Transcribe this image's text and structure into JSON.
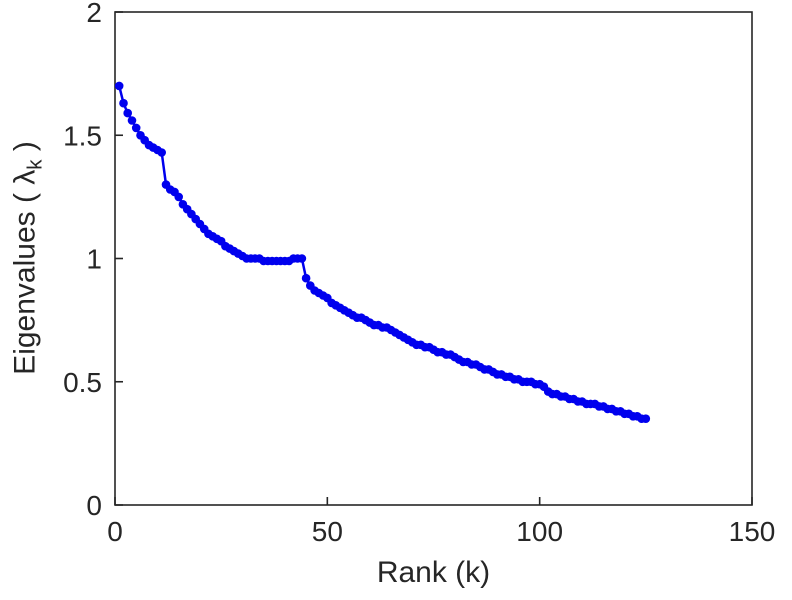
{
  "chart_data": {
    "type": "scatter",
    "title": "",
    "xlabel": "Rank (k)",
    "ylabel": "Eigenvalues ( λk )",
    "ylabel_parts": {
      "prefix": "Eigenvalues ( λ",
      "sub": "k",
      "suffix": " )"
    },
    "xlim": [
      0,
      150
    ],
    "ylim": [
      0,
      2
    ],
    "xticks": [
      0,
      50,
      100,
      150
    ],
    "xtick_labels": [
      "0",
      "50",
      "100",
      "150"
    ],
    "yticks": [
      0,
      0.5,
      1,
      1.5,
      2
    ],
    "ytick_labels": [
      "0",
      "0.5",
      "1",
      "1.5",
      "2"
    ],
    "grid": false,
    "legend": "none",
    "marker_color": "#0000EE",
    "axis_color": "#262626",
    "series": [
      {
        "name": "eigenvalues",
        "x": [
          1,
          2,
          3,
          4,
          5,
          6,
          7,
          8,
          9,
          10,
          11,
          12,
          13,
          14,
          15,
          16,
          17,
          18,
          19,
          20,
          21,
          22,
          23,
          24,
          25,
          26,
          27,
          28,
          29,
          30,
          31,
          32,
          33,
          34,
          35,
          36,
          37,
          38,
          39,
          40,
          41,
          42,
          43,
          44,
          45,
          46,
          47,
          48,
          49,
          50,
          51,
          52,
          53,
          54,
          55,
          56,
          57,
          58,
          59,
          60,
          61,
          62,
          63,
          64,
          65,
          66,
          67,
          68,
          69,
          70,
          71,
          72,
          73,
          74,
          75,
          76,
          77,
          78,
          79,
          80,
          81,
          82,
          83,
          84,
          85,
          86,
          87,
          88,
          89,
          90,
          91,
          92,
          93,
          94,
          95,
          96,
          97,
          98,
          99,
          100,
          101,
          102,
          103,
          104,
          105,
          106,
          107,
          108,
          109,
          110,
          111,
          112,
          113,
          114,
          115,
          116,
          117,
          118,
          119,
          120,
          121,
          122,
          123,
          124,
          125
        ],
        "y": [
          1.7,
          1.63,
          1.59,
          1.56,
          1.53,
          1.5,
          1.48,
          1.46,
          1.45,
          1.44,
          1.43,
          1.3,
          1.28,
          1.27,
          1.25,
          1.22,
          1.2,
          1.18,
          1.16,
          1.14,
          1.12,
          1.1,
          1.09,
          1.08,
          1.07,
          1.05,
          1.04,
          1.03,
          1.02,
          1.01,
          1.0,
          1.0,
          1.0,
          1.0,
          0.99,
          0.99,
          0.99,
          0.99,
          0.99,
          0.99,
          0.99,
          1.0,
          1.0,
          1.0,
          0.92,
          0.89,
          0.87,
          0.86,
          0.85,
          0.84,
          0.82,
          0.81,
          0.8,
          0.79,
          0.78,
          0.77,
          0.76,
          0.76,
          0.75,
          0.74,
          0.73,
          0.73,
          0.72,
          0.72,
          0.71,
          0.7,
          0.69,
          0.68,
          0.67,
          0.66,
          0.65,
          0.65,
          0.64,
          0.64,
          0.63,
          0.62,
          0.62,
          0.61,
          0.61,
          0.6,
          0.59,
          0.58,
          0.58,
          0.57,
          0.57,
          0.56,
          0.55,
          0.55,
          0.54,
          0.53,
          0.53,
          0.52,
          0.52,
          0.51,
          0.51,
          0.5,
          0.5,
          0.5,
          0.49,
          0.49,
          0.48,
          0.46,
          0.45,
          0.45,
          0.44,
          0.44,
          0.43,
          0.43,
          0.42,
          0.42,
          0.41,
          0.41,
          0.41,
          0.4,
          0.4,
          0.39,
          0.39,
          0.38,
          0.38,
          0.37,
          0.37,
          0.36,
          0.36,
          0.35,
          0.35
        ]
      }
    ]
  }
}
